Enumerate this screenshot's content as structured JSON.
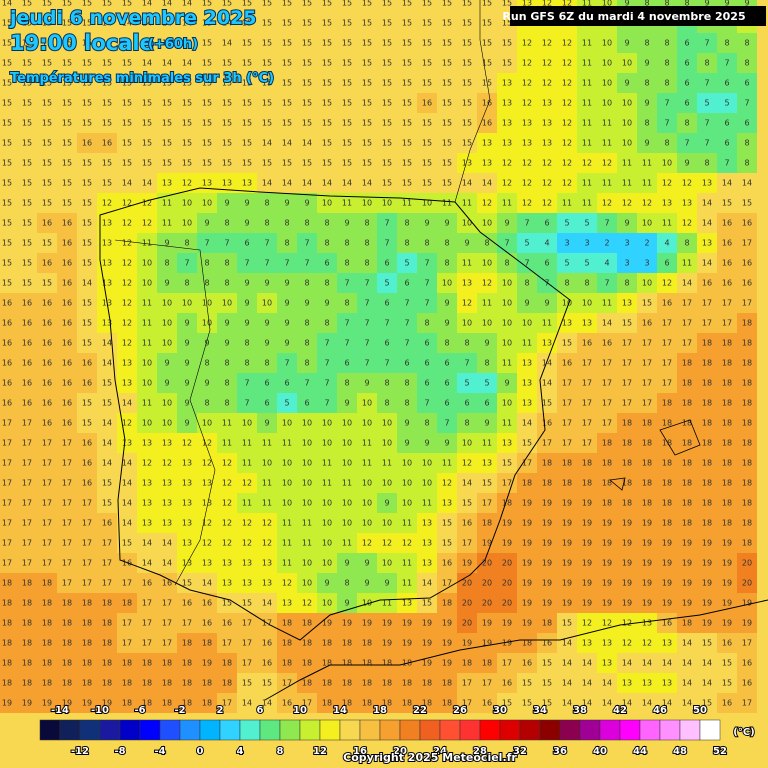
{
  "header": {
    "date": "jeudi 6 novembre 2025",
    "time": "19:00 locale",
    "lead": "(+60h)",
    "subtitle": "Températures minimales sur 3h (°C)",
    "run": "Run GFS 6Z du mardi 4 novembre 2025",
    "copyright": "Copyright 2025 Meteociel.fr"
  },
  "legend": {
    "range": [
      -16,
      52
    ],
    "unit": "(°C)",
    "colors": [
      "#0a0a3a",
      "#10205a",
      "#10307a",
      "#1a1aa0",
      "#0000c8",
      "#0000ff",
      "#1e50ff",
      "#1e90ff",
      "#00b4ff",
      "#30d2ff",
      "#50f0d0",
      "#60e880",
      "#90e850",
      "#c8f030",
      "#f4f020",
      "#f8d850",
      "#f8c040",
      "#f6a030",
      "#f08020",
      "#f06020",
      "#ff5032",
      "#ff3232",
      "#ff0000",
      "#dc0000",
      "#b40000",
      "#8c0000",
      "#8c0050",
      "#a00096",
      "#dc00dc",
      "#ff00ff",
      "#ff64ff",
      "#ff90ff",
      "#ffc0ff",
      "#ffffff"
    ],
    "labels_top": [
      -14,
      -10,
      -6,
      -2,
      2,
      6,
      10,
      14,
      18,
      22,
      26,
      30,
      34,
      38,
      42,
      46,
      50
    ],
    "labels_bottom": [
      -12,
      -8,
      -4,
      0,
      4,
      8,
      12,
      16,
      20,
      24,
      28,
      32,
      36,
      40,
      44,
      48,
      52
    ]
  },
  "grid": {
    "rows": [
      [
        14,
        15,
        15,
        15,
        15,
        15,
        15,
        14,
        14,
        14,
        15,
        15,
        15,
        15,
        15,
        15,
        15,
        15,
        15,
        15,
        15,
        15,
        15,
        15,
        15,
        15,
        13,
        12,
        12,
        11,
        10,
        9,
        8,
        8,
        8,
        9,
        9,
        9
      ],
      [
        15,
        15,
        15,
        15,
        15,
        14,
        14,
        14,
        14,
        14,
        15,
        14,
        15,
        15,
        15,
        15,
        15,
        15,
        15,
        15,
        15,
        15,
        15,
        15,
        15,
        15,
        12,
        12,
        12,
        11,
        10,
        9,
        8,
        8,
        7,
        9,
        9,
        10
      ],
      [
        15,
        15,
        15,
        15,
        15,
        15,
        14,
        14,
        14,
        14,
        15,
        14,
        15,
        15,
        15,
        15,
        15,
        15,
        15,
        15,
        15,
        15,
        15,
        15,
        15,
        15,
        12,
        12,
        12,
        11,
        10,
        9,
        8,
        8,
        6,
        7,
        8,
        8
      ],
      [
        15,
        15,
        15,
        15,
        15,
        15,
        15,
        14,
        14,
        14,
        15,
        15,
        15,
        15,
        15,
        15,
        15,
        15,
        15,
        15,
        15,
        15,
        15,
        15,
        15,
        15,
        12,
        12,
        12,
        11,
        10,
        10,
        9,
        8,
        6,
        8,
        7,
        8
      ],
      [
        15,
        15,
        15,
        15,
        15,
        15,
        15,
        15,
        15,
        15,
        15,
        15,
        15,
        15,
        15,
        15,
        15,
        15,
        15,
        15,
        15,
        15,
        15,
        15,
        15,
        13,
        12,
        12,
        12,
        11,
        10,
        9,
        8,
        8,
        6,
        7,
        6,
        6
      ],
      [
        15,
        15,
        15,
        15,
        15,
        15,
        15,
        15,
        15,
        15,
        15,
        15,
        15,
        15,
        15,
        15,
        15,
        15,
        15,
        15,
        15,
        16,
        15,
        15,
        16,
        13,
        12,
        13,
        12,
        11,
        10,
        10,
        9,
        7,
        6,
        5,
        5,
        7
      ],
      [
        15,
        15,
        15,
        15,
        15,
        15,
        15,
        15,
        15,
        15,
        15,
        15,
        15,
        15,
        15,
        15,
        15,
        15,
        15,
        15,
        15,
        15,
        15,
        15,
        16,
        13,
        13,
        13,
        12,
        11,
        11,
        10,
        8,
        7,
        8,
        7,
        6,
        6
      ],
      [
        15,
        15,
        15,
        15,
        16,
        16,
        15,
        15,
        15,
        15,
        15,
        15,
        15,
        14,
        14,
        14,
        15,
        15,
        15,
        15,
        15,
        15,
        15,
        15,
        13,
        13,
        13,
        13,
        12,
        11,
        11,
        10,
        9,
        8,
        7,
        7,
        6,
        8
      ],
      [
        15,
        15,
        15,
        15,
        15,
        15,
        15,
        15,
        15,
        15,
        15,
        15,
        15,
        15,
        15,
        15,
        15,
        15,
        15,
        15,
        15,
        15,
        15,
        13,
        13,
        12,
        12,
        12,
        12,
        12,
        12,
        11,
        11,
        10,
        9,
        8,
        7,
        8
      ],
      [
        15,
        15,
        15,
        15,
        15,
        15,
        14,
        14,
        13,
        12,
        13,
        13,
        13,
        14,
        14,
        14,
        14,
        14,
        14,
        15,
        15,
        15,
        15,
        14,
        14,
        12,
        12,
        12,
        12,
        11,
        11,
        11,
        11,
        12,
        12,
        13,
        14,
        14
      ],
      [
        15,
        15,
        15,
        15,
        15,
        12,
        12,
        12,
        11,
        10,
        10,
        9,
        9,
        8,
        9,
        9,
        10,
        11,
        10,
        10,
        11,
        10,
        11,
        11,
        12,
        11,
        12,
        12,
        11,
        11,
        12,
        12,
        12,
        13,
        13,
        14,
        15,
        15
      ],
      [
        15,
        15,
        16,
        16,
        15,
        13,
        12,
        12,
        11,
        10,
        9,
        8,
        9,
        8,
        8,
        8,
        8,
        9,
        8,
        7,
        8,
        9,
        9,
        10,
        10,
        9,
        7,
        6,
        5,
        5,
        7,
        9,
        10,
        11,
        12,
        14,
        16,
        16
      ],
      [
        15,
        15,
        15,
        16,
        15,
        13,
        12,
        11,
        9,
        8,
        7,
        7,
        6,
        7,
        8,
        7,
        8,
        8,
        8,
        7,
        8,
        8,
        8,
        9,
        8,
        7,
        5,
        4,
        3,
        3,
        2,
        3,
        2,
        4,
        8,
        13,
        16,
        17
      ],
      [
        15,
        15,
        16,
        16,
        15,
        13,
        12,
        10,
        8,
        7,
        8,
        8,
        7,
        7,
        7,
        7,
        6,
        8,
        8,
        6,
        5,
        7,
        8,
        11,
        10,
        8,
        7,
        6,
        5,
        5,
        4,
        3,
        3,
        6,
        11,
        14,
        16,
        16
      ],
      [
        15,
        15,
        15,
        16,
        14,
        13,
        12,
        10,
        9,
        8,
        8,
        8,
        9,
        9,
        9,
        8,
        8,
        7,
        7,
        5,
        6,
        7,
        10,
        13,
        12,
        10,
        8,
        7,
        8,
        8,
        7,
        8,
        10,
        12,
        14,
        16,
        16,
        16
      ],
      [
        16,
        16,
        16,
        16,
        15,
        13,
        12,
        11,
        10,
        10,
        10,
        10,
        9,
        10,
        9,
        9,
        9,
        8,
        7,
        6,
        7,
        7,
        9,
        12,
        11,
        10,
        9,
        9,
        10,
        10,
        11,
        13,
        15,
        16,
        17,
        17,
        17,
        17
      ],
      [
        16,
        16,
        16,
        16,
        15,
        13,
        12,
        11,
        10,
        9,
        10,
        9,
        9,
        9,
        9,
        8,
        8,
        7,
        7,
        7,
        7,
        8,
        9,
        10,
        10,
        10,
        10,
        11,
        13,
        13,
        14,
        15,
        16,
        17,
        17,
        17,
        17,
        18
      ],
      [
        16,
        16,
        16,
        16,
        15,
        14,
        12,
        11,
        10,
        9,
        9,
        9,
        8,
        9,
        9,
        8,
        7,
        7,
        7,
        6,
        7,
        6,
        8,
        8,
        9,
        10,
        11,
        13,
        15,
        16,
        16,
        17,
        17,
        17,
        17,
        18,
        18,
        18
      ],
      [
        16,
        16,
        16,
        16,
        16,
        14,
        13,
        10,
        9,
        9,
        8,
        8,
        8,
        8,
        7,
        8,
        7,
        6,
        7,
        7,
        6,
        6,
        6,
        7,
        8,
        11,
        13,
        14,
        16,
        17,
        17,
        17,
        17,
        17,
        18,
        18,
        18,
        18
      ],
      [
        16,
        16,
        16,
        16,
        16,
        15,
        13,
        10,
        9,
        9,
        9,
        8,
        7,
        6,
        6,
        7,
        7,
        8,
        9,
        8,
        8,
        6,
        6,
        5,
        5,
        9,
        13,
        14,
        17,
        17,
        17,
        17,
        17,
        17,
        18,
        18,
        18,
        18
      ],
      [
        16,
        16,
        16,
        16,
        15,
        15,
        14,
        11,
        10,
        9,
        8,
        8,
        7,
        6,
        5,
        6,
        7,
        9,
        10,
        8,
        8,
        7,
        6,
        6,
        6,
        10,
        13,
        15,
        17,
        17,
        17,
        17,
        17,
        18,
        18,
        18,
        18,
        18
      ],
      [
        17,
        17,
        16,
        16,
        15,
        14,
        12,
        10,
        10,
        9,
        10,
        11,
        10,
        9,
        10,
        10,
        10,
        10,
        10,
        10,
        9,
        8,
        7,
        8,
        9,
        11,
        14,
        16,
        17,
        17,
        17,
        18,
        18,
        18,
        18,
        18,
        18,
        18
      ],
      [
        17,
        17,
        17,
        17,
        16,
        14,
        13,
        13,
        13,
        12,
        12,
        11,
        11,
        11,
        11,
        10,
        10,
        10,
        11,
        10,
        9,
        9,
        9,
        10,
        11,
        13,
        15,
        17,
        17,
        17,
        18,
        18,
        18,
        18,
        18,
        18,
        18,
        18
      ],
      [
        17,
        17,
        17,
        17,
        16,
        14,
        14,
        12,
        12,
        13,
        12,
        12,
        11,
        10,
        10,
        10,
        11,
        10,
        11,
        11,
        10,
        10,
        11,
        12,
        13,
        15,
        17,
        18,
        18,
        18,
        18,
        18,
        18,
        18,
        18,
        18,
        18,
        18
      ],
      [
        17,
        17,
        17,
        17,
        16,
        15,
        14,
        13,
        13,
        13,
        13,
        12,
        12,
        11,
        10,
        10,
        11,
        11,
        10,
        10,
        10,
        10,
        12,
        14,
        15,
        17,
        18,
        18,
        18,
        18,
        18,
        18,
        18,
        18,
        18,
        18,
        18,
        18
      ],
      [
        17,
        17,
        17,
        17,
        17,
        15,
        14,
        13,
        13,
        13,
        13,
        12,
        11,
        11,
        10,
        10,
        10,
        10,
        10,
        9,
        10,
        11,
        13,
        15,
        17,
        18,
        19,
        19,
        19,
        19,
        18,
        18,
        18,
        18,
        18,
        18,
        18,
        18
      ],
      [
        17,
        17,
        17,
        17,
        17,
        16,
        14,
        13,
        13,
        13,
        12,
        12,
        12,
        12,
        11,
        11,
        10,
        10,
        10,
        10,
        11,
        13,
        15,
        16,
        18,
        19,
        19,
        19,
        19,
        19,
        19,
        19,
        19,
        18,
        18,
        18,
        18,
        18
      ],
      [
        17,
        17,
        17,
        17,
        17,
        17,
        15,
        14,
        14,
        13,
        12,
        12,
        12,
        12,
        11,
        11,
        10,
        11,
        12,
        12,
        12,
        13,
        15,
        17,
        19,
        19,
        19,
        19,
        19,
        19,
        19,
        19,
        19,
        19,
        19,
        19,
        19,
        18
      ],
      [
        17,
        17,
        17,
        17,
        17,
        17,
        16,
        14,
        14,
        13,
        13,
        13,
        13,
        13,
        11,
        10,
        10,
        9,
        9,
        10,
        11,
        13,
        16,
        19,
        20,
        20,
        19,
        19,
        19,
        19,
        19,
        19,
        19,
        19,
        19,
        19,
        19,
        20
      ],
      [
        18,
        18,
        18,
        17,
        17,
        17,
        17,
        16,
        16,
        15,
        14,
        13,
        13,
        13,
        12,
        10,
        9,
        8,
        9,
        9,
        11,
        14,
        17,
        20,
        20,
        20,
        19,
        19,
        19,
        19,
        19,
        19,
        19,
        19,
        19,
        19,
        19,
        20
      ],
      [
        18,
        18,
        18,
        18,
        18,
        18,
        18,
        17,
        17,
        16,
        16,
        15,
        15,
        14,
        13,
        12,
        10,
        9,
        10,
        11,
        13,
        15,
        18,
        20,
        20,
        20,
        19,
        19,
        19,
        19,
        19,
        19,
        19,
        19,
        19,
        19,
        19,
        19
      ],
      [
        18,
        18,
        18,
        18,
        18,
        18,
        17,
        17,
        17,
        17,
        16,
        16,
        17,
        17,
        18,
        18,
        19,
        19,
        19,
        19,
        19,
        19,
        19,
        20,
        19,
        19,
        19,
        18,
        15,
        12,
        12,
        12,
        13,
        16,
        18,
        19,
        19,
        19
      ],
      [
        18,
        18,
        18,
        18,
        18,
        18,
        17,
        17,
        17,
        18,
        18,
        17,
        17,
        16,
        18,
        18,
        18,
        18,
        18,
        19,
        19,
        19,
        19,
        19,
        19,
        19,
        18,
        16,
        14,
        13,
        13,
        12,
        12,
        13,
        14,
        15,
        16,
        17
      ],
      [
        18,
        18,
        18,
        18,
        18,
        18,
        18,
        18,
        18,
        18,
        19,
        18,
        17,
        16,
        18,
        18,
        18,
        18,
        18,
        18,
        18,
        19,
        19,
        18,
        18,
        17,
        16,
        15,
        14,
        14,
        13,
        14,
        14,
        14,
        14,
        14,
        15,
        16
      ],
      [
        18,
        18,
        18,
        18,
        18,
        18,
        18,
        18,
        18,
        18,
        18,
        18,
        15,
        15,
        17,
        18,
        18,
        18,
        18,
        18,
        18,
        18,
        18,
        17,
        17,
        16,
        15,
        15,
        14,
        14,
        14,
        13,
        13,
        13,
        14,
        14,
        15,
        16
      ],
      [
        19,
        19,
        19,
        19,
        19,
        19,
        18,
        18,
        18,
        18,
        18,
        17,
        14,
        14,
        16,
        17,
        18,
        18,
        18,
        18,
        18,
        18,
        18,
        17,
        16,
        15,
        15,
        15,
        14,
        14,
        14,
        14,
        14,
        14,
        14,
        15,
        16,
        17
      ]
    ]
  }
}
